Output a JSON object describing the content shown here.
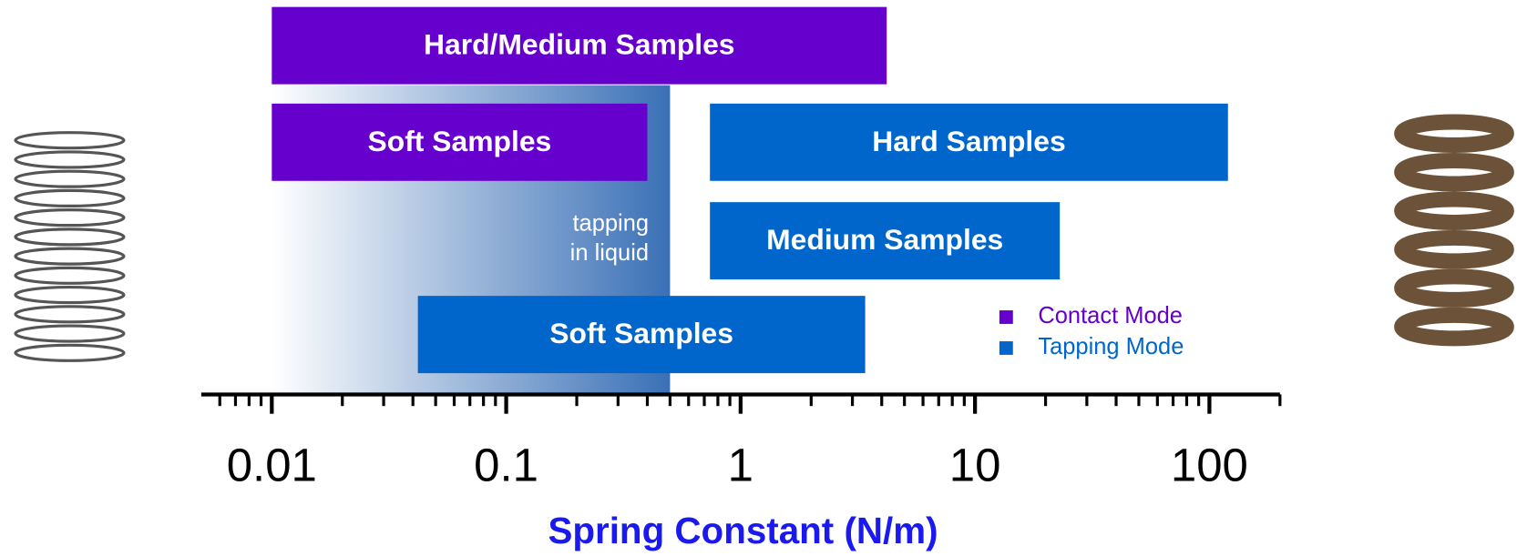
{
  "chart_data": {
    "type": "range-bar",
    "log_x": true,
    "xlabel": "Spring Constant (N/m)",
    "xlim": [
      0.005,
      200
    ],
    "xticks": [
      0.01,
      0.1,
      1,
      10,
      100
    ],
    "minor_xticks": [
      0.006,
      0.007,
      0.008,
      0.009,
      0.02,
      0.03,
      0.04,
      0.05,
      0.06,
      0.07,
      0.08,
      0.09,
      0.2,
      0.3,
      0.4,
      0.5,
      0.6,
      0.7,
      0.8,
      0.9,
      2,
      3,
      4,
      5,
      6,
      7,
      8,
      9,
      20,
      30,
      40,
      50,
      60,
      70,
      80,
      90,
      200
    ],
    "shaded_region": {
      "range": [
        0.01,
        0.5
      ],
      "color": "#3a70b6",
      "annotation_lines": [
        "tapping",
        "in liquid"
      ]
    },
    "legend": "lower right",
    "series": [
      {
        "name": "Contact Mode",
        "color": "#6600cc",
        "bars": [
          {
            "label": "Hard/Medium Samples",
            "range": [
              0.01,
              4.2
            ]
          },
          {
            "label": "Soft Samples",
            "range": [
              0.01,
              0.4
            ]
          }
        ]
      },
      {
        "name": "Tapping Mode",
        "color": "#0066cc",
        "bars": [
          {
            "label": "Hard Samples",
            "range": [
              0.74,
              120
            ]
          },
          {
            "label": "Medium Samples",
            "range": [
              0.74,
              23
            ]
          },
          {
            "label": "Soft Samples",
            "range": [
              0.042,
              3.4
            ]
          }
        ]
      }
    ]
  }
}
